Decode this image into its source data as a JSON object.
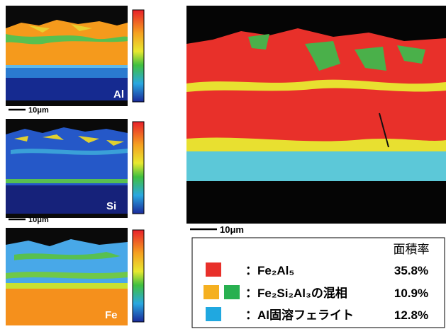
{
  "maps": [
    {
      "label": "Al",
      "scale": "10μm"
    },
    {
      "label": "Si",
      "scale": "10μm"
    },
    {
      "label": "Fe"
    }
  ],
  "phase_map": {
    "scale": "10μm"
  },
  "legend": {
    "header": "面積率",
    "rows": [
      {
        "label": "：Fe₂Al₅",
        "area": "35.8%"
      },
      {
        "label": "：Fe₂Si₂Al₃の混相",
        "area": "10.9%"
      },
      {
        "label": "：Al固溶フェライト",
        "area": "12.8%"
      }
    ]
  }
}
